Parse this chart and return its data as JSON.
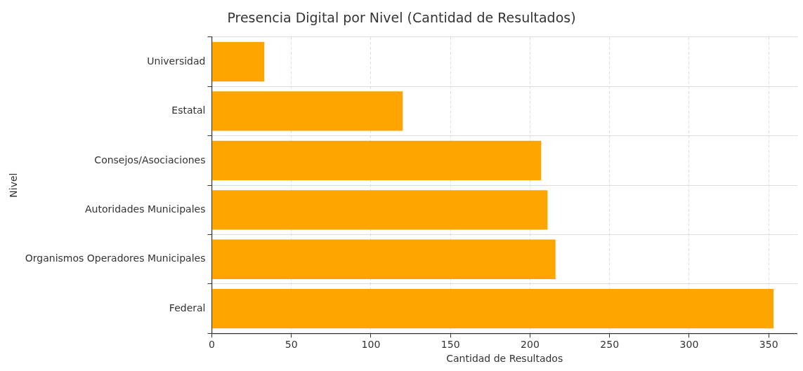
{
  "chart_data": {
    "type": "bar",
    "orientation": "horizontal",
    "title": "Presencia Digital por Nivel (Cantidad de Resultados)",
    "xlabel": "Cantidad de Resultados",
    "ylabel": "Nivel",
    "categories": [
      "Universidad",
      "Estatal",
      "Consejos/Asociaciones",
      "Autoridades Municipales",
      "Organismos Operadores Municipales",
      "Federal"
    ],
    "values": [
      33,
      120,
      207,
      211,
      216,
      353
    ],
    "color": "#ffa500",
    "xlim": [
      0,
      368
    ],
    "xticks": [
      0,
      50,
      100,
      150,
      200,
      250,
      300,
      350
    ],
    "grid": true,
    "legend": false
  }
}
